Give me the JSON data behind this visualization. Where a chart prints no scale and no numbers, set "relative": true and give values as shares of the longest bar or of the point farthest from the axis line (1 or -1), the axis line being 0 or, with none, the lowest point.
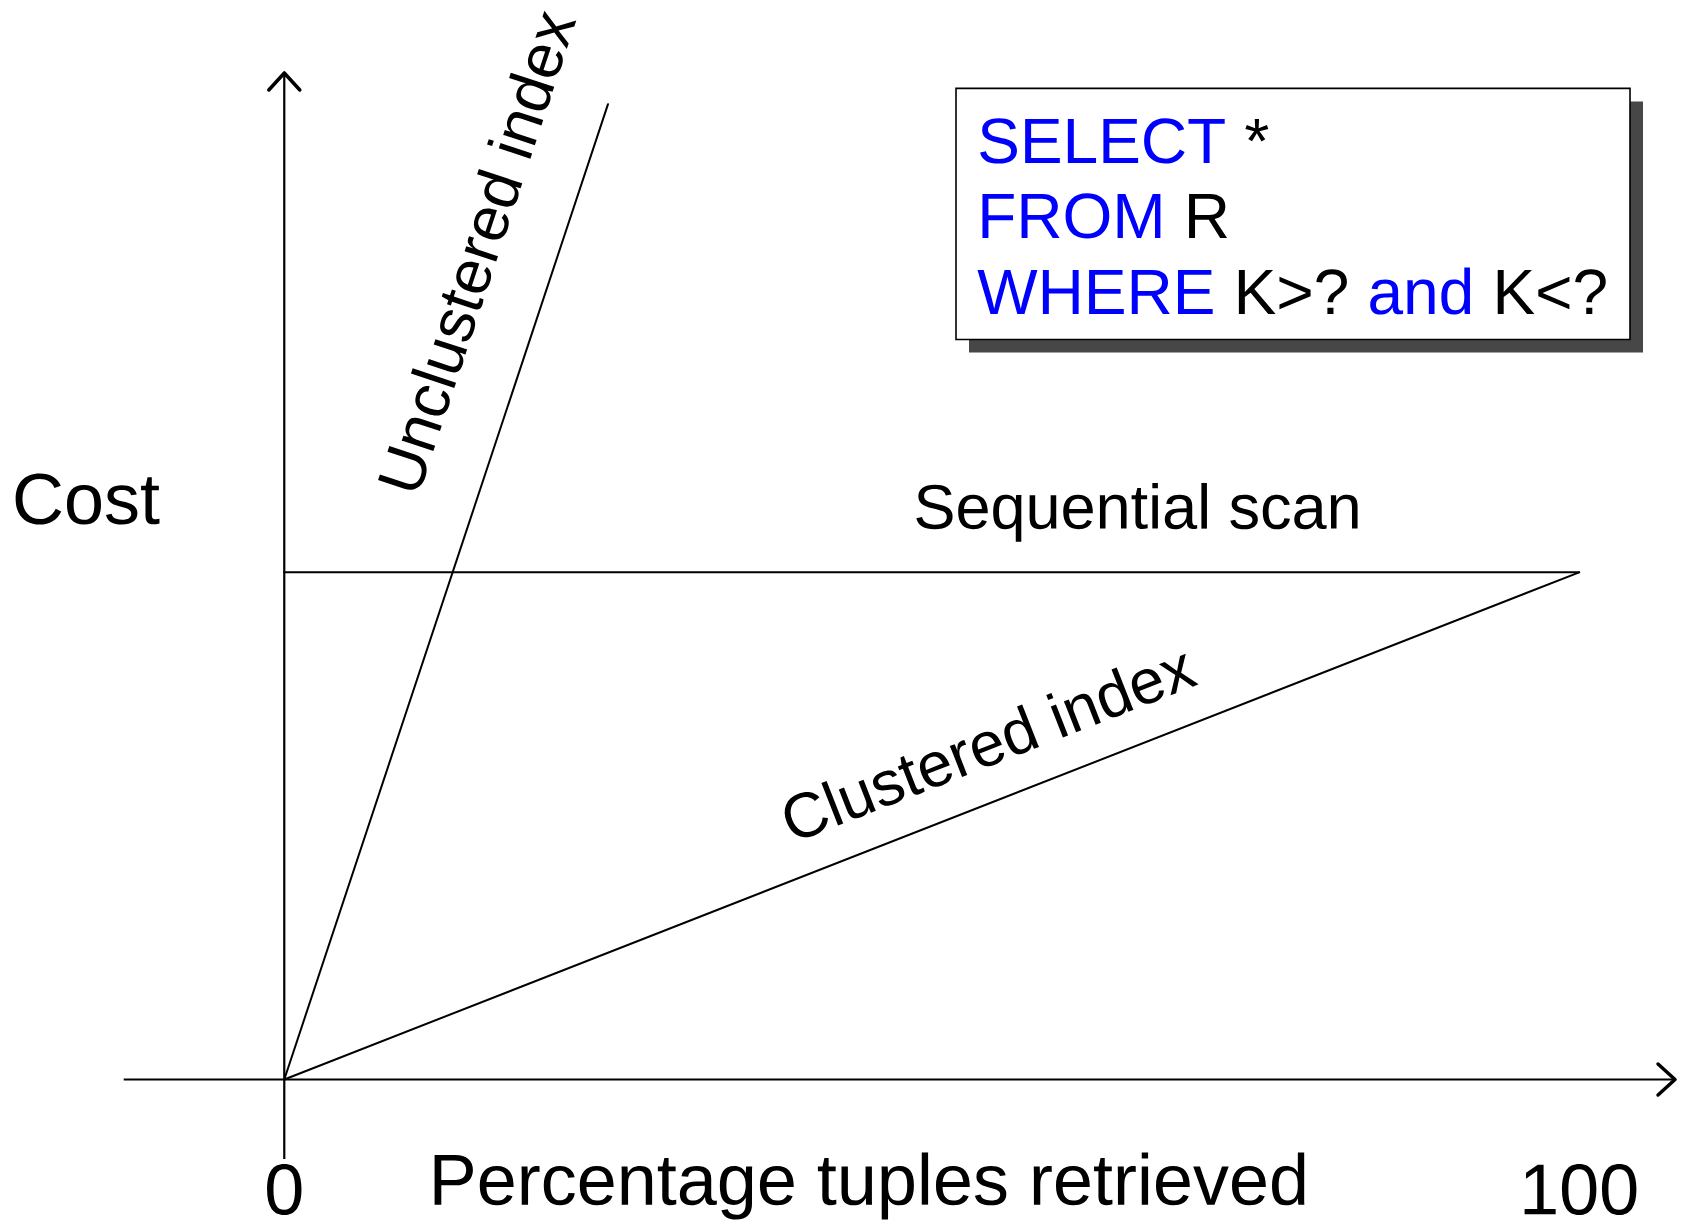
{
  "chart_data": {
    "type": "line",
    "relative": true,
    "xlabel": "Percentage tuples retrieved",
    "ylabel": "Cost",
    "xlim": [
      -12.4,
      107.4
    ],
    "xticks": [
      0,
      100
    ],
    "tick_labels": "x",
    "series": [
      {
        "name": "Unclustered index",
        "color": "#000000",
        "x": [
          0,
          25
        ],
        "values": [
          0,
          1
        ]
      },
      {
        "name": "Sequential scan",
        "color": "#000000",
        "x": [
          0,
          100
        ],
        "values": [
          0.52,
          0.52
        ]
      },
      {
        "name": "Clustered index",
        "color": "#000000",
        "x": [
          0,
          100
        ],
        "values": [
          0,
          0.52
        ]
      }
    ],
    "annotations": [
      "SELECT",
      "*",
      "FROM",
      "R",
      "WHERE",
      "K>?",
      "and",
      "K<?"
    ]
  }
}
